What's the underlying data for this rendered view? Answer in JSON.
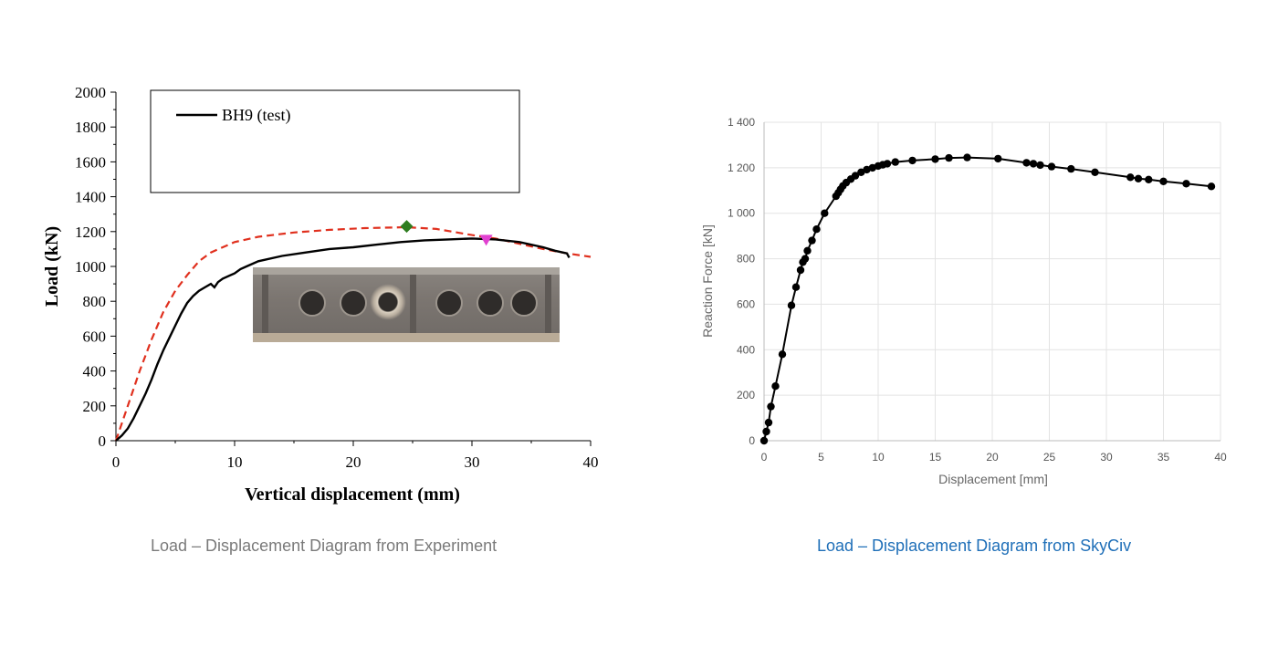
{
  "captions": {
    "left": "Load – Displacement Diagram from Experiment",
    "right": "Load – Displacement Diagram from SkyCiv"
  },
  "colors": {
    "test_curve": "#000000",
    "fe_curve": "#e0301e",
    "peak_marker": "#2e7d1f",
    "failure_marker": "#e040d0",
    "right_caption": "#1f6fb8",
    "left_caption": "#7a7a7a",
    "grid": "#e3e3e3"
  },
  "photo_icon": "specimen-photo",
  "chart_data": [
    {
      "type": "line",
      "title": "",
      "xlabel": "Vertical displacement (mm)",
      "ylabel": "Load (kN)",
      "xlim": [
        0,
        40
      ],
      "ylim": [
        0,
        2000
      ],
      "x_ticks": [
        "0",
        "10",
        "20",
        "30",
        "40"
      ],
      "y_ticks": [
        "0",
        "200",
        "400",
        "600",
        "800",
        "1000",
        "1200",
        "1400",
        "1600",
        "1800",
        "2000"
      ],
      "grid": false,
      "legend": {
        "position": "top-left",
        "entries": [
          "BH9 (test)"
        ]
      },
      "series": [
        {
          "name": "BH9 (test)",
          "style": "solid",
          "x": [
            0,
            0.5,
            1,
            1.5,
            2,
            2.5,
            3,
            3.5,
            4,
            4.5,
            5,
            5.5,
            6,
            6.5,
            7,
            7.5,
            8,
            8.3,
            8.6,
            9,
            10,
            10.5,
            11,
            12,
            14,
            16,
            18,
            20,
            22,
            24,
            26,
            28,
            30,
            32,
            34,
            36,
            37,
            38,
            38.2
          ],
          "y": [
            0,
            30,
            70,
            130,
            200,
            270,
            350,
            440,
            520,
            590,
            660,
            730,
            790,
            830,
            860,
            880,
            900,
            880,
            910,
            930,
            960,
            985,
            1000,
            1030,
            1060,
            1080,
            1100,
            1110,
            1125,
            1140,
            1150,
            1155,
            1160,
            1155,
            1140,
            1110,
            1090,
            1075,
            1050
          ]
        },
        {
          "name": "",
          "style": "dashed",
          "x": [
            0,
            1,
            2,
            3,
            4,
            5,
            6,
            7,
            8,
            10,
            12,
            15,
            18,
            21,
            24.5,
            27,
            30,
            32,
            34,
            36,
            38,
            40
          ],
          "y": [
            0,
            200,
            400,
            580,
            740,
            860,
            950,
            1030,
            1080,
            1140,
            1170,
            1195,
            1210,
            1220,
            1225,
            1215,
            1180,
            1160,
            1130,
            1100,
            1075,
            1055
          ]
        }
      ],
      "markers": [
        {
          "shape": "diamond",
          "x": 24.5,
          "y": 1230
        },
        {
          "shape": "triangle-down",
          "x": 31.2,
          "y": 1155
        }
      ]
    },
    {
      "type": "line",
      "title": "",
      "xlabel": "Displacement [mm]",
      "ylabel": "Reaction Force [kN]",
      "xlim": [
        0,
        40
      ],
      "ylim": [
        0,
        1400
      ],
      "x_ticks": [
        "0",
        "5",
        "10",
        "15",
        "20",
        "25",
        "30",
        "35",
        "40"
      ],
      "y_ticks": [
        "0",
        "200",
        "400",
        "600",
        "800",
        "1 000",
        "1 200",
        "1 400"
      ],
      "grid": true,
      "series": [
        {
          "name": "",
          "x": [
            0,
            0.2,
            0.4,
            0.6,
            1.0,
            1.6,
            2.4,
            2.8,
            3.2,
            3.4,
            3.6,
            3.8,
            4.2,
            4.6,
            5.3,
            6.3,
            6.5,
            6.7,
            6.9,
            7.2,
            7.6,
            8.0,
            8.5,
            9.0,
            9.5,
            10.0,
            10.4,
            10.8,
            11.5,
            13.0,
            15.0,
            16.2,
            17.8,
            20.5,
            23.0,
            23.6,
            24.2,
            25.2,
            26.9,
            29.0,
            32.1,
            32.8,
            33.7,
            35.0,
            37.0,
            39.2
          ],
          "y": [
            0,
            40,
            80,
            150,
            240,
            380,
            595,
            675,
            750,
            785,
            800,
            835,
            880,
            930,
            1000,
            1075,
            1090,
            1105,
            1120,
            1135,
            1150,
            1165,
            1180,
            1192,
            1200,
            1208,
            1213,
            1218,
            1225,
            1232,
            1238,
            1243,
            1245,
            1240,
            1222,
            1218,
            1212,
            1205,
            1195,
            1180,
            1158,
            1152,
            1148,
            1140,
            1130,
            1118
          ]
        }
      ]
    }
  ]
}
